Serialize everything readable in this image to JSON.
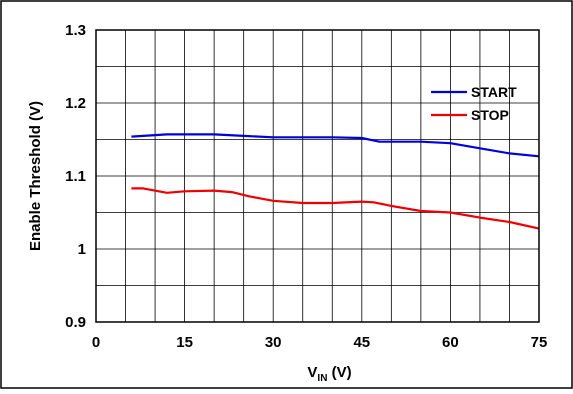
{
  "chart_data": {
    "type": "line",
    "xlabel": "V",
    "xlabel_subscript": "IN",
    "xlabel_suffix": " (V)",
    "ylabel": "Enable Threshold (V)",
    "xlim": [
      0,
      75
    ],
    "ylim": [
      0.9,
      1.3
    ],
    "x_ticks": [
      0,
      15,
      30,
      45,
      60,
      75
    ],
    "x_tick_labels": [
      "0",
      "15",
      "30",
      "45",
      "60",
      "75"
    ],
    "x_grid_step": 5,
    "y_ticks": [
      0.9,
      1.0,
      1.1,
      1.2,
      1.3
    ],
    "y_tick_labels": [
      "0.9",
      "1",
      "1.1",
      "1.2",
      "1.3"
    ],
    "y_grid_step": 0.05,
    "grid": true,
    "legend_position": "top-right",
    "series": [
      {
        "name": "START",
        "color": "#0000dd",
        "x": [
          6,
          10,
          12,
          15,
          20,
          25,
          30,
          35,
          40,
          45,
          48,
          50,
          55,
          60,
          65,
          70,
          75
        ],
        "y": [
          1.154,
          1.156,
          1.157,
          1.157,
          1.157,
          1.155,
          1.153,
          1.153,
          1.153,
          1.152,
          1.147,
          1.147,
          1.147,
          1.145,
          1.138,
          1.131,
          1.127
        ]
      },
      {
        "name": "STOP",
        "color": "#ee0000",
        "x": [
          6,
          8,
          12,
          15,
          20,
          23,
          26,
          30,
          35,
          40,
          45,
          47,
          50,
          55,
          60,
          65,
          70,
          75
        ],
        "y": [
          1.083,
          1.083,
          1.077,
          1.079,
          1.08,
          1.078,
          1.072,
          1.066,
          1.063,
          1.063,
          1.065,
          1.064,
          1.059,
          1.052,
          1.05,
          1.043,
          1.037,
          1.028
        ]
      }
    ]
  }
}
